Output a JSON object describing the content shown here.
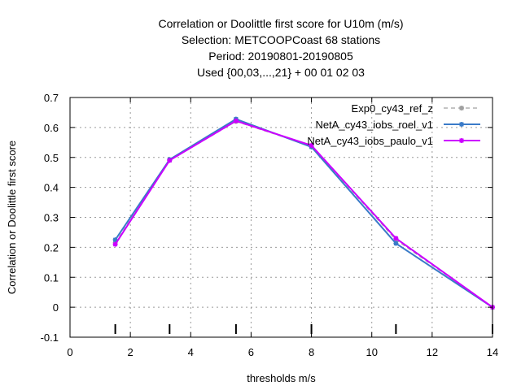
{
  "chart_data": {
    "type": "line",
    "title_lines": [
      "Correlation or Doolittle first score  for U10m (m/s)",
      "Selection: METCOOPCoast     68 stations",
      "Period: 20190801-20190805",
      "Used {00,03,...,21} + 00 01 02 03"
    ],
    "xlabel": "thresholds m/s",
    "ylabel": "Correlation or Doolittle first score",
    "xlim": [
      0,
      14
    ],
    "ylim": [
      -0.1,
      0.7
    ],
    "xticks": [
      "0",
      "2",
      "4",
      "6",
      "8",
      "10",
      "12",
      "14"
    ],
    "yticks": [
      "-0.1",
      "0",
      "0.1",
      "0.2",
      "0.3",
      "0.4",
      "0.5",
      "0.6",
      "0.7"
    ],
    "grid": true,
    "legend_position": "top-right",
    "threshold_markers": [
      1.5,
      3.3,
      5.5,
      8.0,
      10.8,
      14.0
    ],
    "series": [
      {
        "name": "Exp0_cy43_ref_z",
        "color": "#a0a0a0",
        "dashed": true,
        "x": [
          1.5,
          3.3,
          5.5,
          8.0,
          10.8,
          14.0
        ],
        "y": [
          0.215,
          0.49,
          0.62,
          0.538,
          0.225,
          0.0
        ]
      },
      {
        "name": "NetA_cy43_iobs_roel_v1",
        "color": "#3a7bc8",
        "dashed": false,
        "x": [
          1.5,
          3.3,
          5.5,
          8.0,
          10.8,
          14.0
        ],
        "y": [
          0.225,
          0.493,
          0.628,
          0.535,
          0.213,
          0.0
        ]
      },
      {
        "name": "NetA_cy43_iobs_paulo_v1",
        "color": "#cc00ff",
        "dashed": false,
        "x": [
          1.5,
          3.3,
          5.5,
          8.0,
          10.8,
          14.0
        ],
        "y": [
          0.21,
          0.49,
          0.622,
          0.54,
          0.23,
          0.0
        ]
      }
    ]
  }
}
